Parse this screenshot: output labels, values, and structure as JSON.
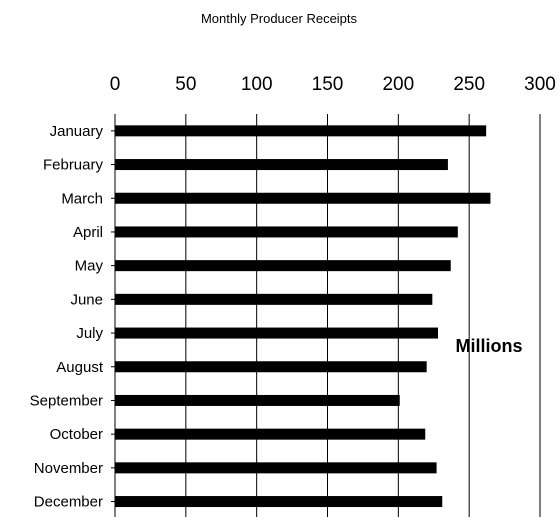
{
  "chart_data": {
    "type": "bar",
    "orientation": "horizontal",
    "title": "Monthly Producer Receipts",
    "unit_label": "Millions",
    "xlim": [
      0,
      300
    ],
    "x_ticks": [
      "0",
      "50",
      "100",
      "150",
      "200",
      "250",
      "300"
    ],
    "x_tick_values": [
      0,
      50,
      100,
      150,
      200,
      250,
      300
    ],
    "x_axis_position": "top",
    "grid": "vertical",
    "categories": [
      "January",
      "February",
      "March",
      "April",
      "May",
      "June",
      "July",
      "August",
      "September",
      "October",
      "November",
      "December"
    ],
    "values": [
      262,
      235,
      265,
      242,
      237,
      224,
      228,
      220,
      201,
      219,
      227,
      231
    ],
    "bar_color": "#000000"
  }
}
